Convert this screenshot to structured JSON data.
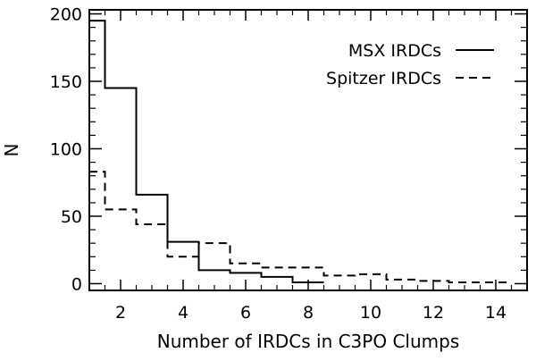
{
  "chart_data": {
    "type": "step",
    "title": "",
    "xlabel": "Number of IRDCs in C3PO Clumps",
    "ylabel": "N",
    "xlim": [
      1,
      15
    ],
    "ylim": [
      -5,
      203
    ],
    "xticks": [
      2,
      4,
      6,
      8,
      10,
      12,
      14
    ],
    "yticks": [
      0,
      50,
      100,
      150,
      200
    ],
    "x_tick_labels": [
      "2",
      "4",
      "6",
      "8",
      "10",
      "12",
      "14"
    ],
    "y_tick_labels": [
      "0",
      "50",
      "100",
      "150",
      "200"
    ],
    "grid": false,
    "legend_position": "top-right",
    "series": [
      {
        "name": "MSX IRDCs",
        "style": "solid",
        "color": "#000000",
        "x": [
          1,
          2,
          3,
          4,
          5,
          6,
          7,
          8
        ],
        "y": [
          195,
          145,
          66,
          31,
          10,
          8,
          5,
          1
        ]
      },
      {
        "name": "Spitzer IRDCs",
        "style": "dashed",
        "color": "#000000",
        "x": [
          1,
          2,
          3,
          4,
          5,
          6,
          7,
          8,
          9,
          10,
          11,
          12,
          13,
          14
        ],
        "y": [
          83,
          55,
          44,
          20,
          30,
          15,
          12,
          12,
          6,
          7,
          3,
          2,
          1,
          1
        ]
      }
    ]
  }
}
